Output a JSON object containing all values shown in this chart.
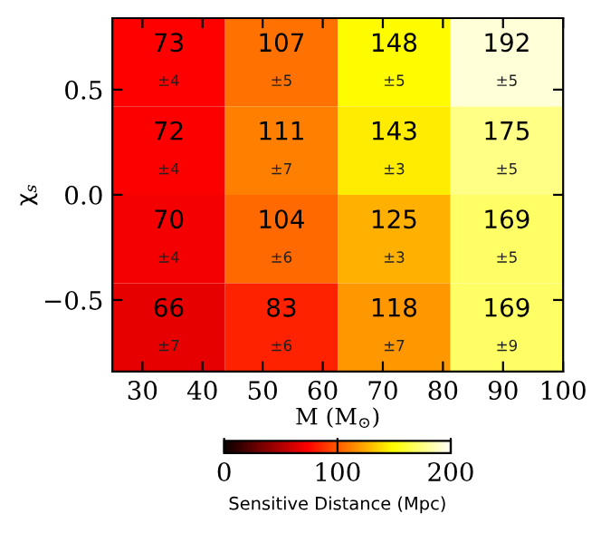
{
  "chart_data": {
    "type": "heatmap",
    "xlabel": "M (M$_{⊙}$)",
    "ylabel": "χ$_{s}$",
    "clabel": "Sensitive Distance (Mpc)",
    "x": [
      34.375,
      53.125,
      71.875,
      90.625
    ],
    "y": [
      0.63,
      0.21,
      -0.21,
      -0.63
    ],
    "cells": [
      [
        73,
        107,
        148,
        192
      ],
      [
        72,
        111,
        143,
        175
      ],
      [
        70,
        104,
        125,
        169
      ],
      [
        66,
        83,
        118,
        169
      ]
    ],
    "cell_labels": [
      [
        "73\n±4",
        "107\n±5",
        "148\n±5",
        "192\n±5"
      ],
      [
        "72\n±4",
        "111\n±7",
        "143\n±3",
        "175\n±5"
      ],
      [
        "70\n±4",
        "104\n±6",
        "125\n±3",
        "169\n±5"
      ],
      [
        "66\n±7",
        "83\n±6",
        "118\n±7",
        "169\n±9"
      ]
    ],
    "xlim": [
      25,
      100
    ],
    "xticks": [
      30,
      40,
      50,
      60,
      70,
      80,
      90,
      100
    ],
    "ylim": [
      -0.84,
      0.84
    ],
    "yticks": [
      {
        "value": -0.5,
        "label": "−0.5"
      },
      {
        "value": 0,
        "label": "0.0"
      },
      0.5
    ],
    "clim": [
      0,
      200
    ],
    "cticks": [
      0,
      100,
      200
    ]
  }
}
